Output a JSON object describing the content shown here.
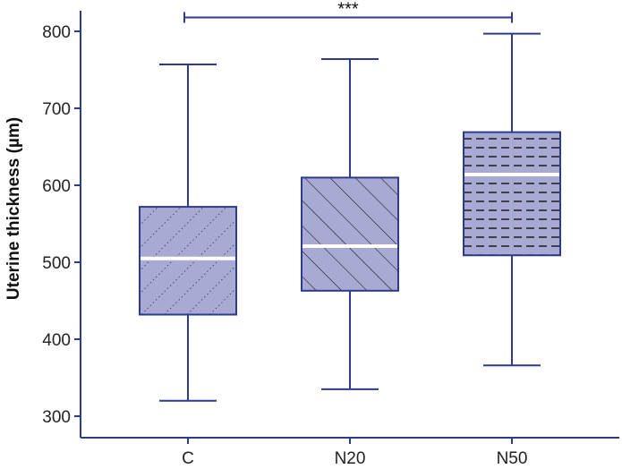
{
  "chart_data": {
    "type": "box",
    "ylabel": "Uterine thickness (µm)",
    "ylim": [
      290,
      830
    ],
    "yticks": [
      300,
      400,
      500,
      600,
      700,
      800
    ],
    "categories": [
      "C",
      "N20",
      "N50"
    ],
    "boxes": [
      {
        "category": "C",
        "min": 320,
        "q1": 432,
        "median": 505,
        "q3": 572,
        "max": 757,
        "pattern": "dotted-diagonal"
      },
      {
        "category": "N20",
        "min": 335,
        "q1": 463,
        "median": 521,
        "q3": 610,
        "max": 764,
        "pattern": "diagonal-lines"
      },
      {
        "category": "N50",
        "min": 366,
        "q1": 509,
        "median": 614,
        "q3": 669,
        "max": 797,
        "pattern": "dashed-horizontal"
      }
    ],
    "significance": [
      {
        "from": "C",
        "to": "N50",
        "label": "***",
        "y": 818
      }
    ],
    "colors": {
      "axis": "#2e3a8c",
      "box_fill": "#a9aad4",
      "box_stroke": "#2e3a8c",
      "median": "#ffffff",
      "whisker": "#2e3a8c",
      "pattern": "#111111"
    }
  }
}
